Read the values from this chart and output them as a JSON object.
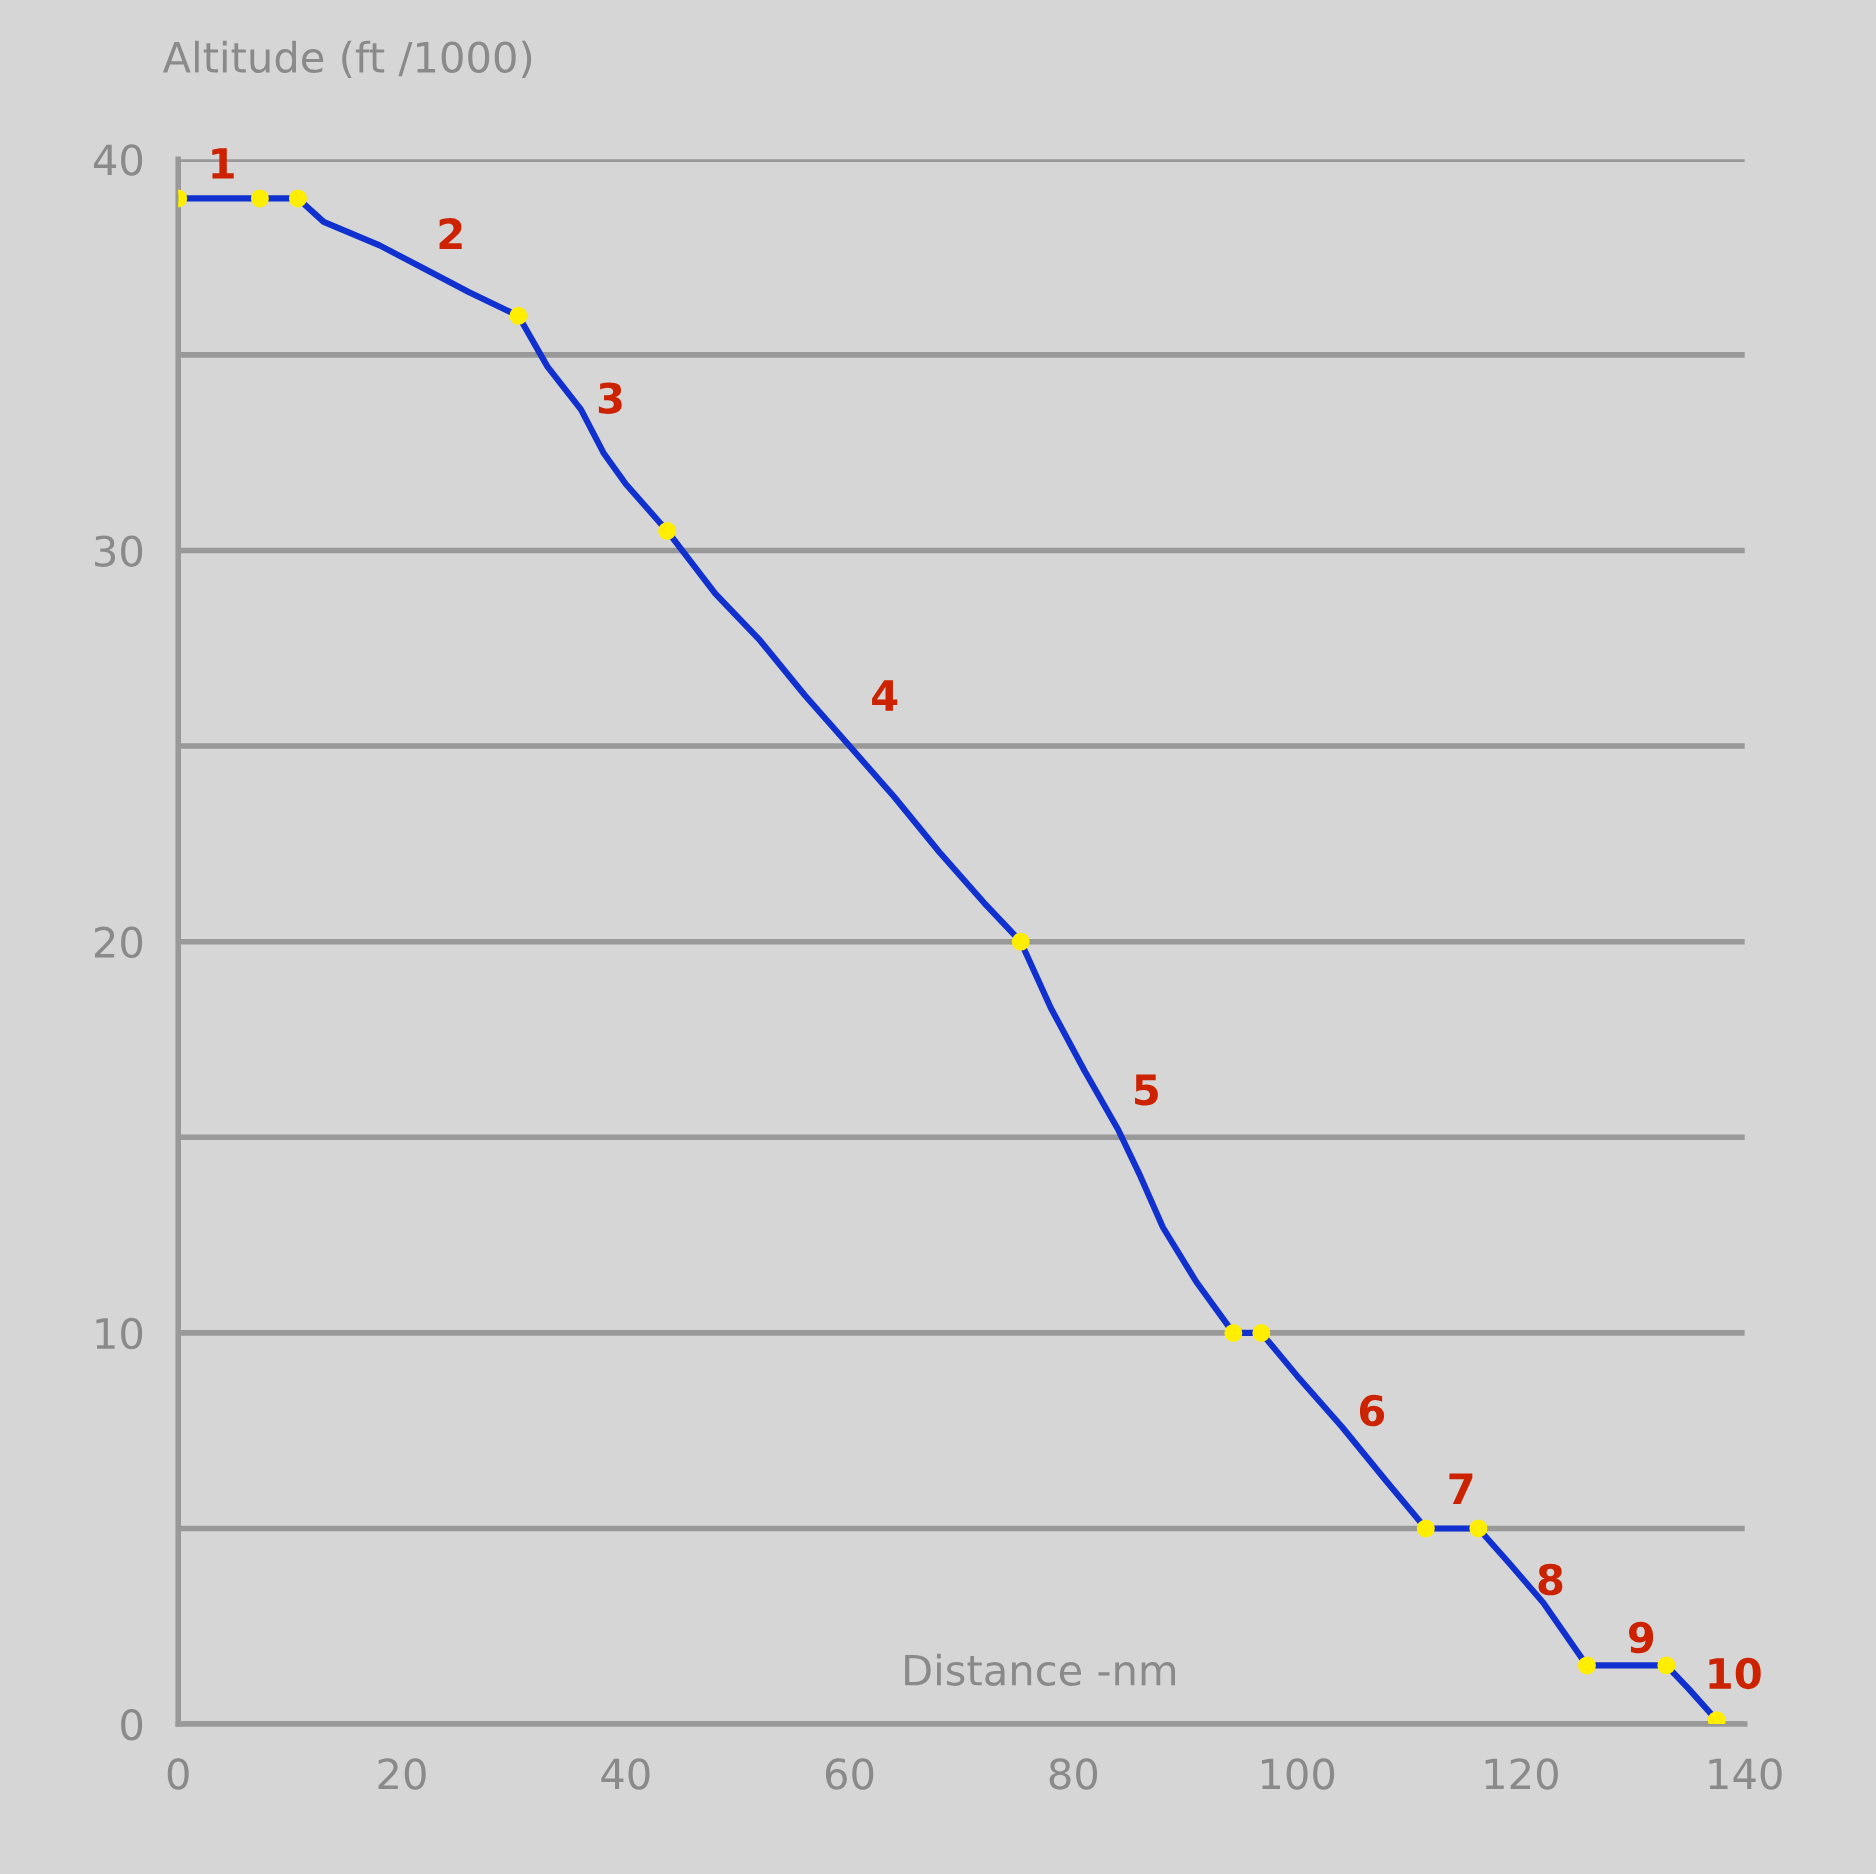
{
  "chart_data": {
    "type": "line",
    "xlabel": "Distance -nm",
    "ylabel": "Altitude (ft /1000)",
    "xlim": [
      0,
      140
    ],
    "xticks": [
      0,
      20,
      40,
      60,
      80,
      100,
      120,
      140
    ],
    "ylim": [
      0,
      40
    ],
    "yticks": [
      0,
      {
        "value": 5,
        "label": null
      },
      10,
      {
        "value": 15,
        "label": null
      },
      20,
      {
        "value": 25,
        "label": null
      },
      30,
      {
        "value": 35,
        "label": null
      },
      40
    ],
    "grid": "y",
    "line_style": "solid",
    "series": [
      {
        "color": "#1030d0",
        "marker": "none",
        "x": [
          0,
          7.3,
          10.7,
          13,
          18,
          22,
          26,
          30.4,
          33,
          36,
          38,
          40,
          43.7,
          48,
          52,
          56,
          60,
          64,
          68,
          72,
          75.3,
          78,
          81,
          84,
          86,
          88,
          91,
          94.3,
          96.8,
          100,
          104,
          108,
          111.5,
          116.2,
          119,
          122,
          125.9,
          133,
          135,
          137.5
        ],
        "values": [
          39,
          39,
          39,
          38.4,
          37.8,
          37.2,
          36.6,
          36,
          34.7,
          33.6,
          32.5,
          31.7,
          30.5,
          28.9,
          27.7,
          26.3,
          25,
          23.7,
          22.3,
          21,
          20,
          18.3,
          16.7,
          15.2,
          14,
          12.7,
          11.3,
          10,
          10,
          8.9,
          7.6,
          6.2,
          5,
          5,
          4.1,
          3.1,
          1.5,
          1.5,
          0.9,
          0.1
        ]
      },
      {
        "type": "scatter",
        "color": "#ffee00",
        "marker": "circle",
        "x": [
          0,
          7.3,
          10.7,
          30.4,
          43.7,
          75.3,
          94.3,
          96.8,
          111.5,
          116.2,
          125.9,
          133,
          137.5
        ],
        "values": [
          39,
          39,
          39,
          36,
          30.5,
          20,
          10,
          10,
          5,
          5,
          1.5,
          1.5,
          0.1
        ]
      }
    ],
    "annotations": [
      "1",
      "2",
      "3",
      "4",
      "5",
      "6",
      "7",
      "8",
      "9",
      "10"
    ]
  }
}
